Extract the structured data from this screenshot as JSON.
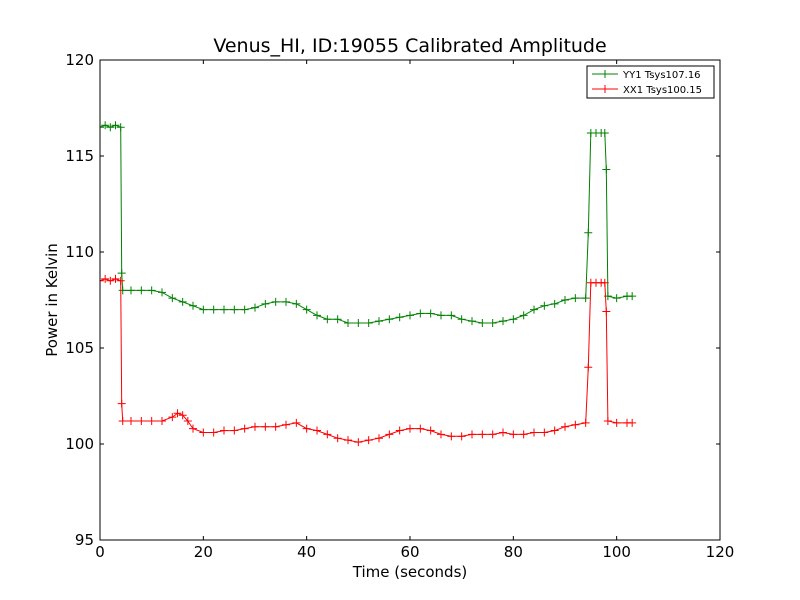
{
  "chart_data": {
    "type": "line",
    "title": "Venus_HI, ID:19055 Calibrated Amplitude",
    "xlabel": "Time (seconds)",
    "ylabel": "Power in Kelvin",
    "xlim": [
      0,
      120
    ],
    "ylim": [
      95,
      120
    ],
    "xticks": [
      "0",
      "20",
      "40",
      "60",
      "80",
      "100",
      "120"
    ],
    "yticks": [
      "95",
      "100",
      "105",
      "110",
      "115",
      "120"
    ],
    "grid": false,
    "legend_position": "top-right",
    "series": [
      {
        "name": "YY1 Tsys107.16",
        "color": "#008000",
        "marker": "+",
        "points": [
          [
            0,
            116.5
          ],
          [
            1,
            116.6
          ],
          [
            2,
            116.5
          ],
          [
            3,
            116.6
          ],
          [
            4,
            116.5
          ],
          [
            4.2,
            108.9
          ],
          [
            4.4,
            108.0
          ],
          [
            6,
            108.0
          ],
          [
            8,
            108.0
          ],
          [
            10,
            108.0
          ],
          [
            12,
            107.9
          ],
          [
            14,
            107.6
          ],
          [
            16,
            107.4
          ],
          [
            18,
            107.2
          ],
          [
            20,
            107.0
          ],
          [
            22,
            107.0
          ],
          [
            24,
            107.0
          ],
          [
            26,
            107.0
          ],
          [
            28,
            107.0
          ],
          [
            30,
            107.1
          ],
          [
            32,
            107.3
          ],
          [
            34,
            107.4
          ],
          [
            36,
            107.4
          ],
          [
            38,
            107.3
          ],
          [
            40,
            107.0
          ],
          [
            42,
            106.7
          ],
          [
            44,
            106.5
          ],
          [
            46,
            106.5
          ],
          [
            48,
            106.3
          ],
          [
            50,
            106.3
          ],
          [
            52,
            106.3
          ],
          [
            54,
            106.4
          ],
          [
            56,
            106.5
          ],
          [
            58,
            106.6
          ],
          [
            60,
            106.7
          ],
          [
            62,
            106.8
          ],
          [
            64,
            106.8
          ],
          [
            66,
            106.7
          ],
          [
            68,
            106.7
          ],
          [
            70,
            106.5
          ],
          [
            72,
            106.4
          ],
          [
            74,
            106.3
          ],
          [
            76,
            106.3
          ],
          [
            78,
            106.4
          ],
          [
            80,
            106.5
          ],
          [
            82,
            106.7
          ],
          [
            84,
            107.0
          ],
          [
            86,
            107.2
          ],
          [
            88,
            107.3
          ],
          [
            90,
            107.5
          ],
          [
            92,
            107.6
          ],
          [
            94,
            107.6
          ],
          [
            94.5,
            111.0
          ],
          [
            95,
            116.2
          ],
          [
            96,
            116.2
          ],
          [
            97,
            116.2
          ],
          [
            97.7,
            116.2
          ],
          [
            98,
            114.3
          ],
          [
            98.3,
            107.7
          ],
          [
            100,
            107.6
          ],
          [
            102,
            107.7
          ],
          [
            103,
            107.7
          ]
        ]
      },
      {
        "name": "XX1 Tsys100.15",
        "color": "#ff0000",
        "marker": "+",
        "points": [
          [
            0,
            108.5
          ],
          [
            1,
            108.6
          ],
          [
            2,
            108.5
          ],
          [
            3,
            108.6
          ],
          [
            4,
            108.5
          ],
          [
            4.2,
            102.1
          ],
          [
            4.4,
            101.2
          ],
          [
            6,
            101.2
          ],
          [
            8,
            101.2
          ],
          [
            10,
            101.2
          ],
          [
            12,
            101.2
          ],
          [
            14,
            101.4
          ],
          [
            15,
            101.6
          ],
          [
            16,
            101.5
          ],
          [
            17,
            101.2
          ],
          [
            18,
            100.8
          ],
          [
            20,
            100.6
          ],
          [
            22,
            100.6
          ],
          [
            24,
            100.7
          ],
          [
            26,
            100.7
          ],
          [
            28,
            100.8
          ],
          [
            30,
            100.9
          ],
          [
            32,
            100.9
          ],
          [
            34,
            100.9
          ],
          [
            36,
            101.0
          ],
          [
            38,
            101.1
          ],
          [
            40,
            100.8
          ],
          [
            42,
            100.7
          ],
          [
            44,
            100.5
          ],
          [
            46,
            100.3
          ],
          [
            48,
            100.2
          ],
          [
            50,
            100.1
          ],
          [
            52,
            100.2
          ],
          [
            54,
            100.3
          ],
          [
            56,
            100.5
          ],
          [
            58,
            100.7
          ],
          [
            60,
            100.8
          ],
          [
            62,
            100.8
          ],
          [
            64,
            100.7
          ],
          [
            66,
            100.5
          ],
          [
            68,
            100.4
          ],
          [
            70,
            100.4
          ],
          [
            72,
            100.5
          ],
          [
            74,
            100.5
          ],
          [
            76,
            100.5
          ],
          [
            78,
            100.6
          ],
          [
            80,
            100.5
          ],
          [
            82,
            100.5
          ],
          [
            84,
            100.6
          ],
          [
            86,
            100.6
          ],
          [
            88,
            100.7
          ],
          [
            90,
            100.9
          ],
          [
            92,
            101.0
          ],
          [
            94,
            101.1
          ],
          [
            94.5,
            104.0
          ],
          [
            95,
            108.4
          ],
          [
            96,
            108.4
          ],
          [
            97,
            108.4
          ],
          [
            97.7,
            108.4
          ],
          [
            98,
            106.9
          ],
          [
            98.3,
            101.2
          ],
          [
            100,
            101.1
          ],
          [
            102,
            101.1
          ],
          [
            103,
            101.1
          ]
        ]
      }
    ]
  }
}
